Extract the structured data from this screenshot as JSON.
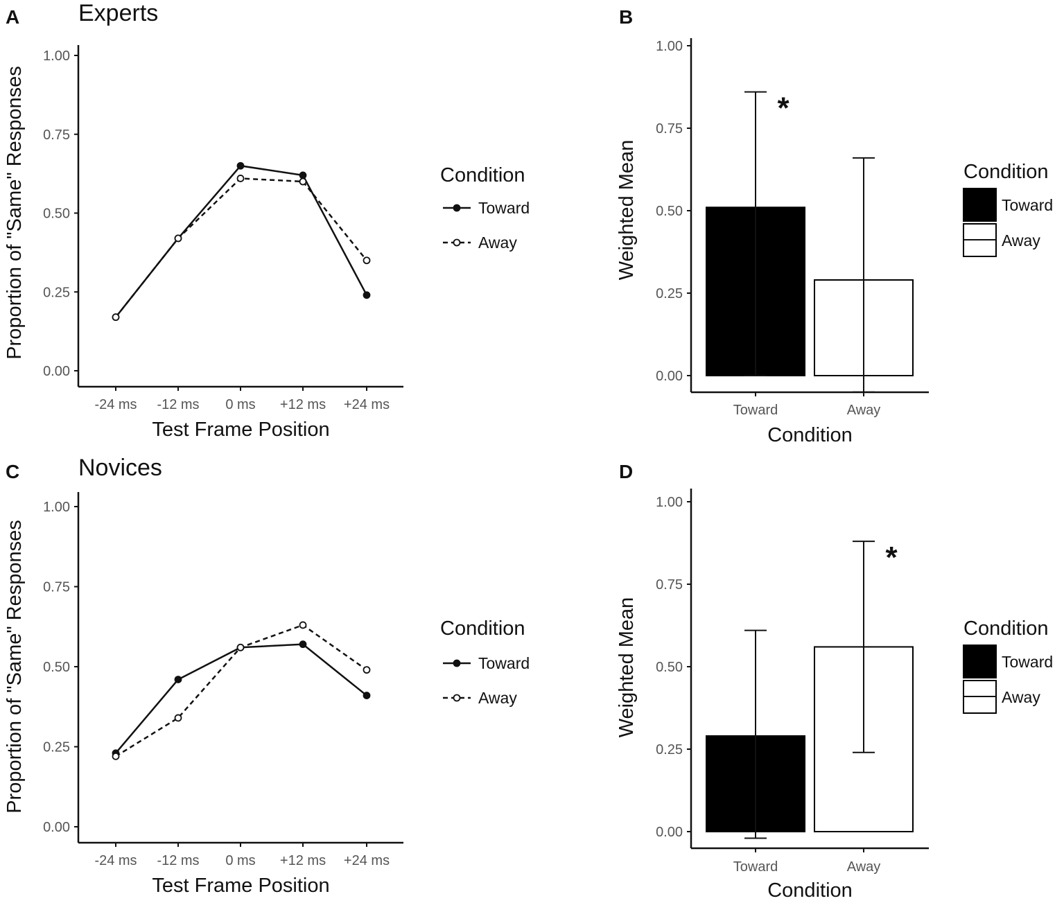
{
  "chart_data": [
    {
      "panel": "A",
      "type": "line",
      "title": "Experts",
      "xlabel": "Test Frame Position",
      "ylabel": "Proportion of \"Same\" Responses",
      "categories": [
        "-24 ms",
        "-12 ms",
        "0 ms",
        "+12 ms",
        "+24 ms"
      ],
      "ylim": [
        0,
        1
      ],
      "yticks": [
        "0.00",
        "0.25",
        "0.50",
        "0.75",
        "1.00"
      ],
      "legend_title": "Condition",
      "series": [
        {
          "name": "Toward",
          "values": [
            0.17,
            0.42,
            0.65,
            0.62,
            0.24
          ]
        },
        {
          "name": "Away",
          "values": [
            0.17,
            0.42,
            0.61,
            0.6,
            0.35
          ]
        }
      ]
    },
    {
      "panel": "B",
      "type": "bar",
      "xlabel": "Condition",
      "ylabel": "Weighted Mean",
      "categories": [
        "Toward",
        "Away"
      ],
      "values": [
        0.51,
        0.29
      ],
      "error_bars": [
        [
          0.0,
          0.86
        ],
        [
          -0.05,
          0.66
        ]
      ],
      "significant": [
        true,
        false
      ],
      "star": "*",
      "ylim": [
        0,
        1
      ],
      "yticks": [
        "0.00",
        "0.25",
        "0.50",
        "0.75",
        "1.00"
      ],
      "legend_title": "Condition",
      "legend": [
        "Toward",
        "Away"
      ]
    },
    {
      "panel": "C",
      "type": "line",
      "title": "Novices",
      "xlabel": "Test Frame Position",
      "ylabel": "Proportion of \"Same\" Responses",
      "categories": [
        "-24 ms",
        "-12 ms",
        "0 ms",
        "+12 ms",
        "+24 ms"
      ],
      "ylim": [
        0,
        1
      ],
      "yticks": [
        "0.00",
        "0.25",
        "0.50",
        "0.75",
        "1.00"
      ],
      "legend_title": "Condition",
      "series": [
        {
          "name": "Toward",
          "values": [
            0.23,
            0.46,
            0.56,
            0.57,
            0.41
          ]
        },
        {
          "name": "Away",
          "values": [
            0.22,
            0.34,
            0.56,
            0.63,
            0.49
          ]
        }
      ]
    },
    {
      "panel": "D",
      "type": "bar",
      "xlabel": "Condition",
      "ylabel": "Weighted Mean",
      "categories": [
        "Toward",
        "Away"
      ],
      "values": [
        0.29,
        0.56
      ],
      "error_bars": [
        [
          -0.02,
          0.61
        ],
        [
          0.24,
          0.88
        ]
      ],
      "significant": [
        false,
        true
      ],
      "star": "*",
      "ylim": [
        0,
        1
      ],
      "yticks": [
        "0.00",
        "0.25",
        "0.50",
        "0.75",
        "1.00"
      ],
      "legend_title": "Condition",
      "legend": [
        "Toward",
        "Away"
      ]
    }
  ]
}
